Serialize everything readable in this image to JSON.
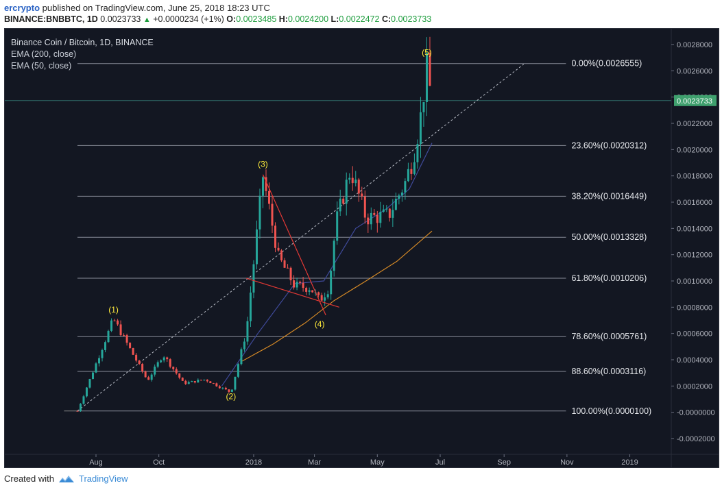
{
  "header": {
    "author": "ercrypto",
    "published_text": "published on TradingView.com, June 25, 2018 18:23 UTC",
    "symbol": "BINANCE:BNBBTC, 1D",
    "price": "0.0023733",
    "change": "+0.0000234 (+1%)",
    "open_label": "O:",
    "open": "0.0023485",
    "high_label": "H:",
    "high": "0.0024200",
    "low_label": "L:",
    "low": "0.0022472",
    "close_label": "C:",
    "close": "0.0023733"
  },
  "legend": {
    "title": "Binance Coin / Bitcoin, 1D, BINANCE",
    "ema200": "EMA (200, close)",
    "ema50": "EMA (50, close)"
  },
  "footer": {
    "created_with": "Created with",
    "brand": "TradingView"
  },
  "colors": {
    "background": "#131722",
    "candle_up": "#26a69a",
    "candle_down": "#ef5350",
    "ema200": "#d68a26",
    "ema50": "#3f4a9a",
    "fib_line": "#8a8e99",
    "wave_label": "#ffeb3b",
    "trend_line": "#e53935",
    "price_badge": "#3fa06e"
  },
  "chart_data": {
    "type": "candlestick",
    "ylim": [
      -0.00032,
      0.00292
    ],
    "price_axis_ticks": [
      "0.0028000",
      "0.0026000",
      "0.0024000",
      "0.0022000",
      "0.0020000",
      "0.0018000",
      "0.0016000",
      "0.0014000",
      "0.0012000",
      "0.0010000",
      "0.0008000",
      "0.0006000",
      "0.0004000",
      "0.0002000",
      "-0.0000000",
      "-0.0002000"
    ],
    "price_axis_values": [
      0.0028,
      0.0026,
      0.0024,
      0.0022,
      0.002,
      0.0018,
      0.0016,
      0.0014,
      0.0012,
      0.001,
      0.0008,
      0.0006,
      0.0004,
      0.0002,
      0,
      -0.0002
    ],
    "time_axis_ticks": [
      "Aug",
      "Oct",
      "2018",
      "Mar",
      "May",
      "Jul",
      "Sep",
      "Nov",
      "2019"
    ],
    "time_axis_values": [
      "2017-08-01",
      "2017-10-01",
      "2018-01-01",
      "2018-03-01",
      "2018-05-01",
      "2018-07-01",
      "2018-09-01",
      "2018-11-01",
      "2019-01-01"
    ],
    "last_price_label": "0.0023733",
    "last_price": 0.0023733,
    "fib_levels": [
      {
        "label": "0.00%(0.0026555)",
        "value": 0.0026555
      },
      {
        "label": "23.60%(0.0020312)",
        "value": 0.0020312
      },
      {
        "label": "38.20%(0.0016449)",
        "value": 0.0016449
      },
      {
        "label": "50.00%(0.0013328)",
        "value": 0.0013328
      },
      {
        "label": "61.80%(0.0010206)",
        "value": 0.0010206
      },
      {
        "label": "78.60%(0.0005761)",
        "value": 0.0005761
      },
      {
        "label": "88.60%(0.0003116)",
        "value": 0.0003116
      },
      {
        "label": "100.00%(0.0000100)",
        "value": 1e-05
      }
    ],
    "fib_date_range": [
      "2017-07-14",
      "2018-06-20"
    ],
    "wave_labels": [
      {
        "label": "(1)",
        "date": "2017-08-18",
        "price": 0.00076
      },
      {
        "label": "(2)",
        "date": "2017-12-10",
        "price": 0.0001
      },
      {
        "label": "(3)",
        "date": "2018-01-10",
        "price": 0.00187
      },
      {
        "label": "(4)",
        "date": "2018-03-06",
        "price": 0.00065
      },
      {
        "label": "(5)",
        "date": "2018-06-18",
        "price": 0.00272
      }
    ],
    "key_points": [
      {
        "date": "2017-07-14",
        "price": 1e-05
      },
      {
        "date": "2017-08-18",
        "price": 0.00071
      },
      {
        "date": "2017-09-20",
        "price": 0.00024
      },
      {
        "date": "2017-10-05",
        "price": 0.00044
      },
      {
        "date": "2017-10-25",
        "price": 0.00022
      },
      {
        "date": "2017-11-15",
        "price": 0.00025
      },
      {
        "date": "2017-12-10",
        "price": 0.00015
      },
      {
        "date": "2017-12-25",
        "price": 0.00062
      },
      {
        "date": "2018-01-10",
        "price": 0.0018
      },
      {
        "date": "2018-01-25",
        "price": 0.00118
      },
      {
        "date": "2018-02-10",
        "price": 0.00096
      },
      {
        "date": "2018-02-25",
        "price": 0.00095
      },
      {
        "date": "2018-03-06",
        "price": 0.00085
      },
      {
        "date": "2018-03-15",
        "price": 0.00095
      },
      {
        "date": "2018-03-22",
        "price": 0.00145
      },
      {
        "date": "2018-04-05",
        "price": 0.00185
      },
      {
        "date": "2018-04-20",
        "price": 0.00148
      },
      {
        "date": "2018-05-12",
        "price": 0.0015
      },
      {
        "date": "2018-05-28",
        "price": 0.00175
      },
      {
        "date": "2018-06-05",
        "price": 0.00195
      },
      {
        "date": "2018-06-12",
        "price": 0.00225
      },
      {
        "date": "2018-06-18",
        "price": 0.00262
      },
      {
        "date": "2018-06-23",
        "price": 0.00237
      }
    ],
    "ema200_points": [
      {
        "date": "2017-12-21",
        "price": 0.00039
      },
      {
        "date": "2018-01-20",
        "price": 0.00052
      },
      {
        "date": "2018-02-20",
        "price": 0.00068
      },
      {
        "date": "2018-03-20",
        "price": 0.00085
      },
      {
        "date": "2018-04-20",
        "price": 0.001
      },
      {
        "date": "2018-05-20",
        "price": 0.00115
      },
      {
        "date": "2018-06-23",
        "price": 0.00138
      }
    ],
    "ema50_points": [
      {
        "date": "2017-12-01",
        "price": 0.0002
      },
      {
        "date": "2018-01-05",
        "price": 0.0006
      },
      {
        "date": "2018-02-10",
        "price": 0.00098
      },
      {
        "date": "2018-03-10",
        "price": 0.001
      },
      {
        "date": "2018-04-10",
        "price": 0.0014
      },
      {
        "date": "2018-05-10",
        "price": 0.00155
      },
      {
        "date": "2018-06-01",
        "price": 0.0017
      },
      {
        "date": "2018-06-23",
        "price": 0.00205
      }
    ],
    "trend_lines": [
      {
        "from": {
          "date": "2018-01-10",
          "price": 0.00181
        },
        "to": {
          "date": "2018-03-12",
          "price": 0.00074
        }
      },
      {
        "from": {
          "date": "2017-12-25",
          "price": 0.00102
        },
        "to": {
          "date": "2018-03-25",
          "price": 0.0008
        }
      }
    ],
    "dotted_trend_line": {
      "from": {
        "date": "2017-07-14",
        "price": 1e-05
      },
      "to": {
        "date": "2018-09-20",
        "price": 0.00265
      }
    }
  }
}
